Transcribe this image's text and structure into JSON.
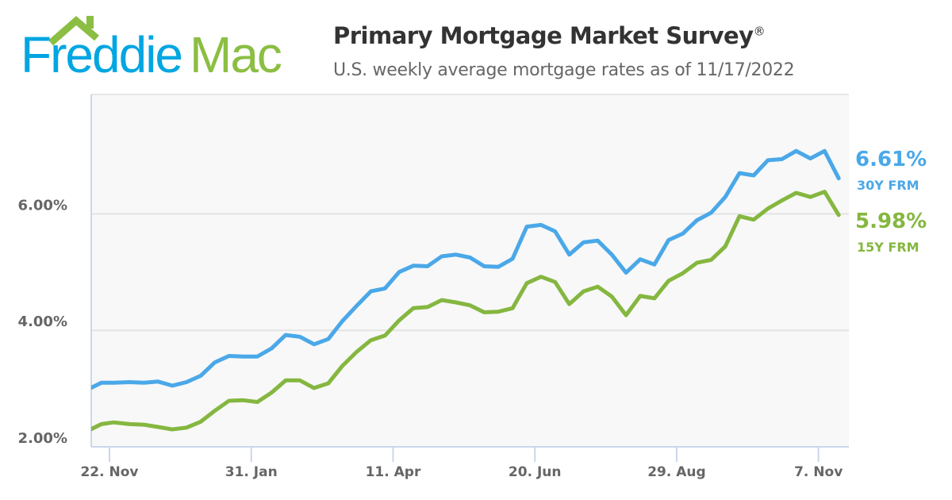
{
  "logo": {
    "text_a": "Freddie",
    "text_b": "Mac",
    "blue": "#00a6e2",
    "green": "#8bbe43"
  },
  "header": {
    "title": "Primary Mortgage Market Survey",
    "title_mark": "®",
    "subtitle": "U.S. weekly average mortgage rates as of 11/17/2022"
  },
  "chart_data": {
    "type": "line",
    "title": "Primary Mortgage Market Survey®",
    "subtitle": "U.S. weekly average mortgage rates as of 11/17/2022",
    "xlabel": "",
    "ylabel": "",
    "xlim": [
      "2021-11-13",
      "2022-11-22"
    ],
    "ylim": [
      2,
      8.05
    ],
    "grid": true,
    "y_ticks": [
      {
        "value": 2,
        "label": "2.00%"
      },
      {
        "value": 4,
        "label": "4.00%"
      },
      {
        "value": 6,
        "label": "6.00%"
      }
    ],
    "x_ticks": [
      {
        "date": "2021-11-22",
        "label": "22. Nov"
      },
      {
        "date": "2022-01-31",
        "label": "31. Jan"
      },
      {
        "date": "2022-04-11",
        "label": "11. Apr"
      },
      {
        "date": "2022-06-20",
        "label": "20. Jun"
      },
      {
        "date": "2022-08-29",
        "label": "29. Aug"
      },
      {
        "date": "2022-11-07",
        "label": "7. Nov"
      }
    ],
    "x": [
      "2021-11-11",
      "2021-11-18",
      "2021-11-24",
      "2021-12-02",
      "2021-12-09",
      "2021-12-16",
      "2021-12-23",
      "2021-12-30",
      "2022-01-06",
      "2022-01-13",
      "2022-01-20",
      "2022-01-27",
      "2022-02-03",
      "2022-02-10",
      "2022-02-17",
      "2022-02-24",
      "2022-03-03",
      "2022-03-10",
      "2022-03-17",
      "2022-03-24",
      "2022-03-31",
      "2022-04-07",
      "2022-04-14",
      "2022-04-21",
      "2022-04-28",
      "2022-05-05",
      "2022-05-12",
      "2022-05-19",
      "2022-05-26",
      "2022-06-02",
      "2022-06-09",
      "2022-06-16",
      "2022-06-23",
      "2022-06-30",
      "2022-07-07",
      "2022-07-14",
      "2022-07-21",
      "2022-07-28",
      "2022-08-04",
      "2022-08-11",
      "2022-08-18",
      "2022-08-25",
      "2022-09-01",
      "2022-09-08",
      "2022-09-15",
      "2022-09-22",
      "2022-09-29",
      "2022-10-06",
      "2022-10-13",
      "2022-10-20",
      "2022-10-27",
      "2022-11-03",
      "2022-11-10",
      "2022-11-17"
    ],
    "series": [
      {
        "name": "30Y FRM",
        "latest": "6.61%",
        "color": "#4aa8e8",
        "values": [
          2.98,
          3.1,
          3.1,
          3.11,
          3.1,
          3.12,
          3.05,
          3.11,
          3.22,
          3.45,
          3.56,
          3.55,
          3.55,
          3.69,
          3.92,
          3.89,
          3.76,
          3.85,
          4.16,
          4.42,
          4.67,
          4.72,
          5.0,
          5.11,
          5.1,
          5.27,
          5.3,
          5.25,
          5.1,
          5.09,
          5.23,
          5.78,
          5.81,
          5.7,
          5.3,
          5.51,
          5.54,
          5.3,
          4.99,
          5.22,
          5.13,
          5.55,
          5.66,
          5.89,
          6.02,
          6.29,
          6.7,
          6.66,
          6.92,
          6.94,
          7.08,
          6.95,
          7.08,
          6.61
        ]
      },
      {
        "name": "15Y FRM",
        "latest": "5.98%",
        "color": "#85b740",
        "values": [
          2.27,
          2.39,
          2.42,
          2.39,
          2.38,
          2.34,
          2.3,
          2.33,
          2.43,
          2.62,
          2.79,
          2.8,
          2.77,
          2.93,
          3.14,
          3.14,
          3.01,
          3.09,
          3.39,
          3.63,
          3.83,
          3.91,
          4.17,
          4.38,
          4.4,
          4.52,
          4.48,
          4.43,
          4.31,
          4.32,
          4.38,
          4.81,
          4.92,
          4.83,
          4.45,
          4.67,
          4.75,
          4.58,
          4.26,
          4.59,
          4.55,
          4.85,
          4.98,
          5.16,
          5.21,
          5.44,
          5.96,
          5.9,
          6.09,
          6.23,
          6.36,
          6.29,
          6.38,
          5.98
        ]
      }
    ]
  }
}
